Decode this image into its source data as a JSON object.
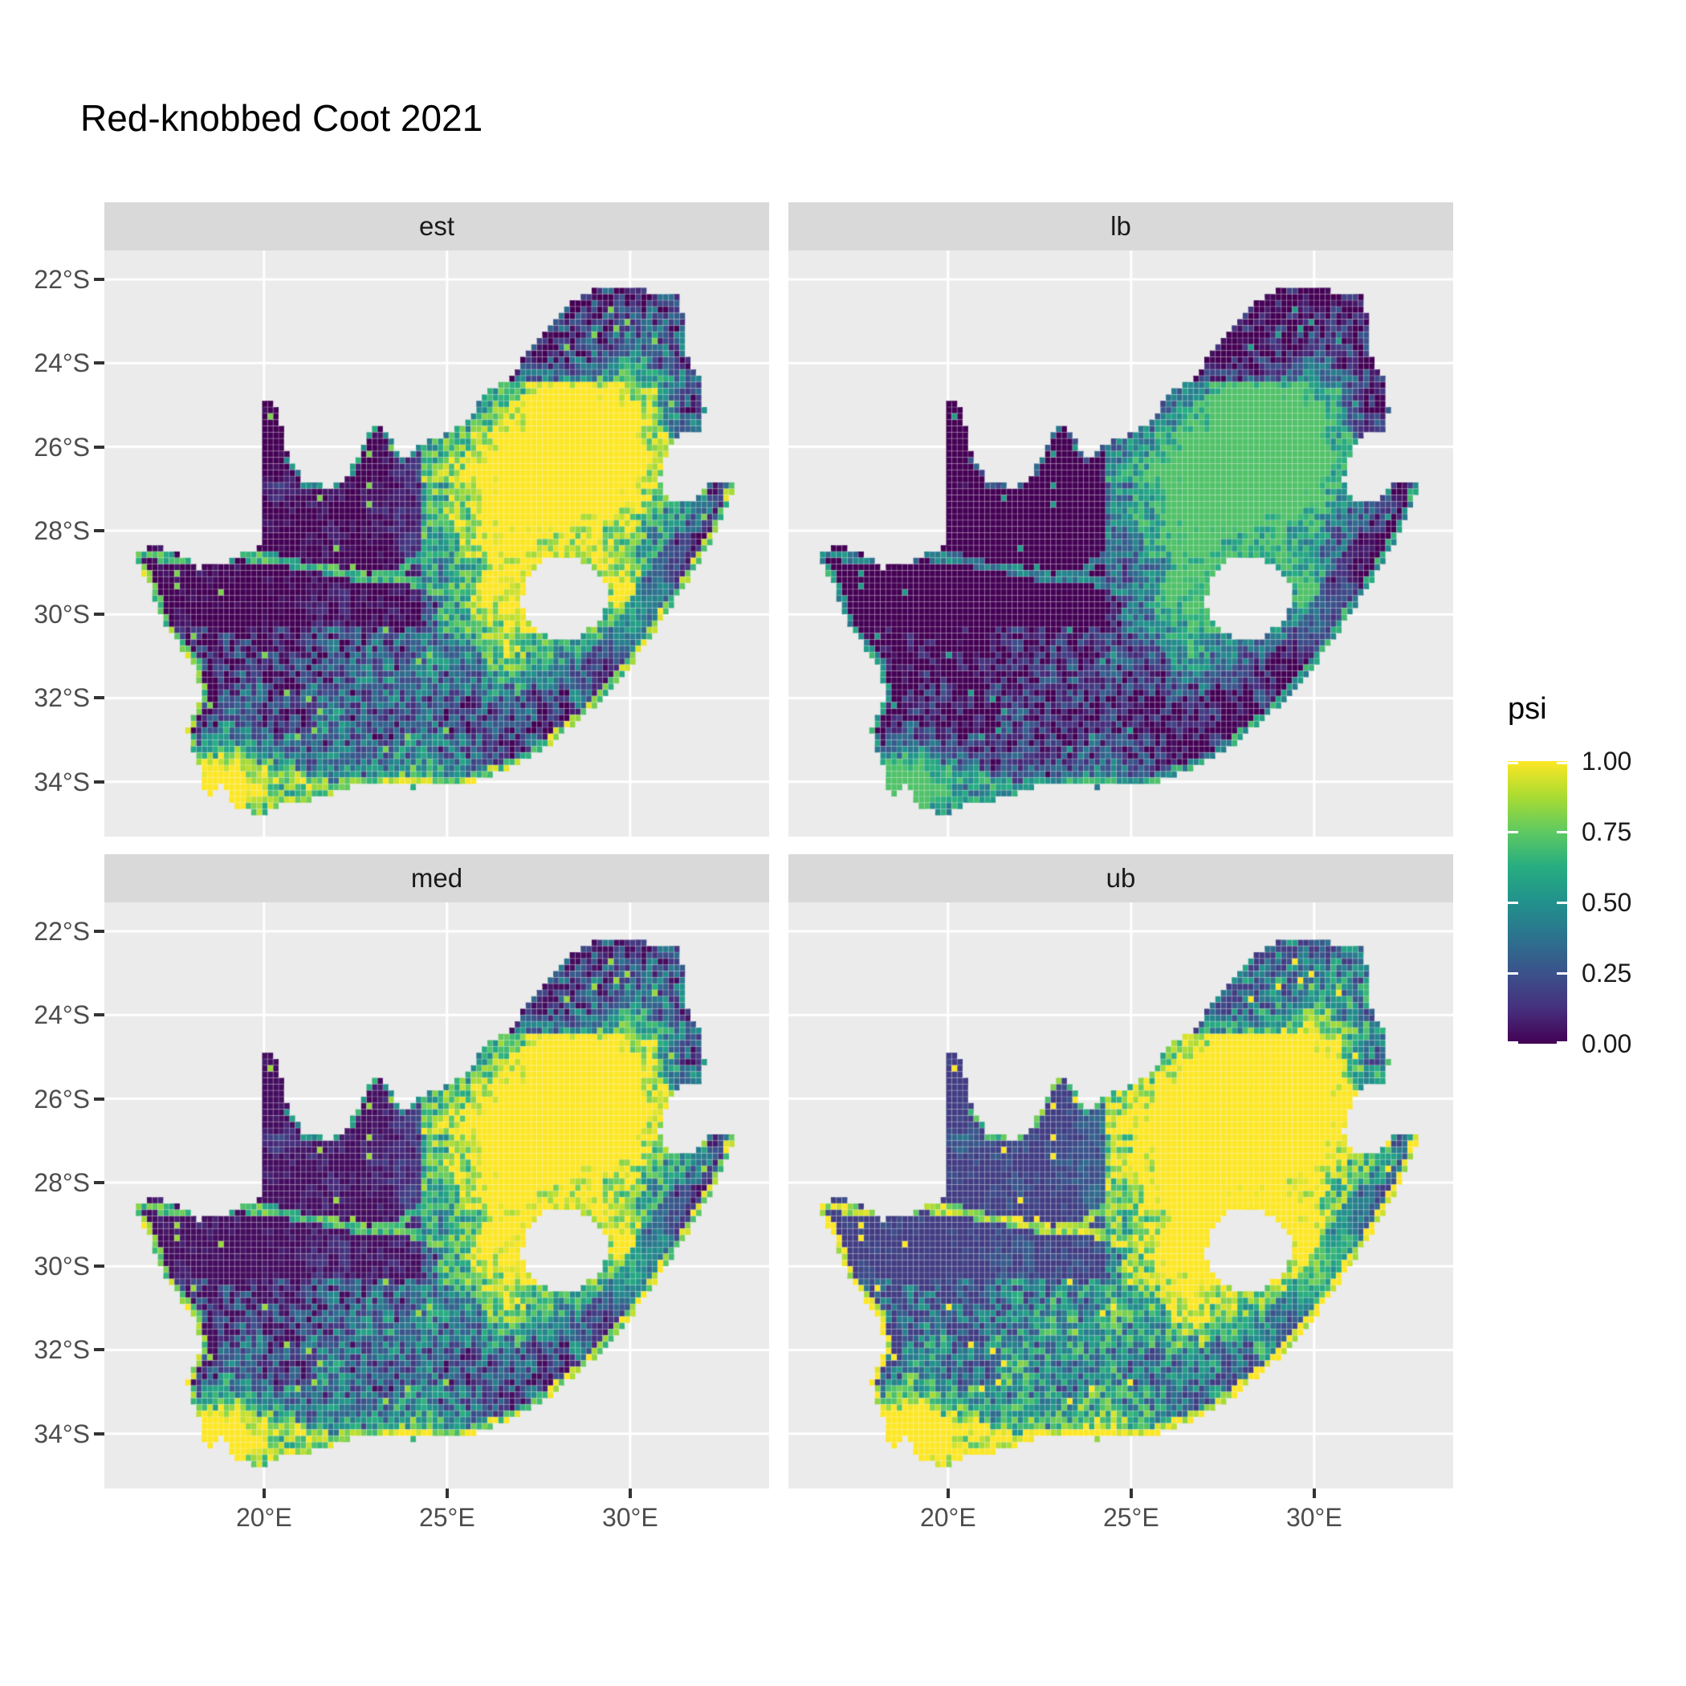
{
  "title": "Red-knobbed Coot 2021",
  "legend": {
    "title": "psi",
    "entries": [
      {
        "label": "1.00",
        "value": 1.0
      },
      {
        "label": "0.75",
        "value": 0.75
      },
      {
        "label": "0.50",
        "value": 0.5
      },
      {
        "label": "0.25",
        "value": 0.25
      },
      {
        "label": "0.00",
        "value": 0.0
      }
    ]
  },
  "axes": {
    "x": {
      "ticks": [
        {
          "label": "20°E",
          "value": 20
        },
        {
          "label": "25°E",
          "value": 25
        },
        {
          "label": "30°E",
          "value": 30
        }
      ]
    },
    "y": {
      "ticks": [
        {
          "label": "22°S",
          "value": 22
        },
        {
          "label": "24°S",
          "value": 24
        },
        {
          "label": "26°S",
          "value": 26
        },
        {
          "label": "28°S",
          "value": 28
        },
        {
          "label": "30°S",
          "value": 30
        },
        {
          "label": "32°S",
          "value": 32
        },
        {
          "label": "34°S",
          "value": 34
        }
      ]
    }
  },
  "colors": {
    "figure_bg": "#FFFFFF",
    "panel_bg": "#EBEBEB",
    "strip_bg": "#D9D9D9",
    "grid_major": "#FFFFFF",
    "axis_text": "#4D4D4D",
    "strip_text": "#1A1A1A",
    "title_text": "#000000",
    "tick_mark": "#333333",
    "cell_grid": "rgba(255,255,255,0.27)"
  },
  "chart_data": {
    "type": "heatmap",
    "subtype": "faceted_raster_occupancy_map",
    "title": "Red-knobbed Coot 2021",
    "region": "South Africa",
    "value_name": "psi",
    "value_range": [
      0,
      1
    ],
    "facets": [
      {
        "label": "est",
        "mul": 1.0,
        "add": 0.0
      },
      {
        "label": "lb",
        "mul": 0.85,
        "add": -0.13
      },
      {
        "label": "med",
        "mul": 1.02,
        "add": 0.03
      },
      {
        "label": "ub",
        "mul": 1.08,
        "add": 0.17
      }
    ],
    "lon_range": [
      15.64,
      33.8
    ],
    "lat_range": [
      -35.31,
      -21.31
    ],
    "cell_size_deg": 0.15,
    "grid_origin": [
      16.35,
      -22.05
    ],
    "grid_cols": 111,
    "grid_rows": 86,
    "noise_seed": 11,
    "viridis_stops": [
      {
        "t": 0.0,
        "c": "#440154"
      },
      {
        "t": 0.125,
        "c": "#46307e"
      },
      {
        "t": 0.25,
        "c": "#3b528b"
      },
      {
        "t": 0.375,
        "c": "#2c728e"
      },
      {
        "t": 0.5,
        "c": "#21918c"
      },
      {
        "t": 0.625,
        "c": "#27ad81"
      },
      {
        "t": 0.75,
        "c": "#5ec962"
      },
      {
        "t": 0.875,
        "c": "#aadc32"
      },
      {
        "t": 1.0,
        "c": "#fde725"
      }
    ],
    "outline": [
      [
        16.45,
        -28.58
      ],
      [
        17.0,
        -28.32
      ],
      [
        17.6,
        -28.55
      ],
      [
        18.25,
        -28.9
      ],
      [
        19.0,
        -28.75
      ],
      [
        19.6,
        -28.45
      ],
      [
        19.99,
        -28.4
      ],
      [
        19.99,
        -26.5
      ],
      [
        19.99,
        -24.88
      ],
      [
        20.35,
        -25.05
      ],
      [
        20.55,
        -25.7
      ],
      [
        20.7,
        -26.35
      ],
      [
        21.15,
        -26.88
      ],
      [
        21.9,
        -26.95
      ],
      [
        22.35,
        -26.6
      ],
      [
        22.9,
        -25.65
      ],
      [
        23.2,
        -25.42
      ],
      [
        23.5,
        -25.82
      ],
      [
        23.78,
        -26.28
      ],
      [
        24.25,
        -25.95
      ],
      [
        24.85,
        -25.75
      ],
      [
        25.45,
        -25.5
      ],
      [
        25.8,
        -25.05
      ],
      [
        26.1,
        -24.68
      ],
      [
        26.55,
        -24.48
      ],
      [
        26.95,
        -24.1
      ],
      [
        27.3,
        -23.55
      ],
      [
        28.0,
        -23.0
      ],
      [
        28.4,
        -22.58
      ],
      [
        29.15,
        -22.18
      ],
      [
        29.75,
        -22.12
      ],
      [
        30.45,
        -22.28
      ],
      [
        31.3,
        -22.38
      ],
      [
        31.55,
        -23.2
      ],
      [
        31.58,
        -23.98
      ],
      [
        31.98,
        -24.4
      ],
      [
        32.03,
        -25.12
      ],
      [
        31.95,
        -25.58
      ],
      [
        31.3,
        -25.74
      ],
      [
        30.9,
        -26.32
      ],
      [
        30.8,
        -26.88
      ],
      [
        31.08,
        -27.28
      ],
      [
        31.62,
        -27.33
      ],
      [
        31.98,
        -27.06
      ],
      [
        32.15,
        -26.88
      ],
      [
        32.89,
        -26.88
      ],
      [
        32.55,
        -27.62
      ],
      [
        32.18,
        -28.32
      ],
      [
        31.68,
        -29.08
      ],
      [
        31.02,
        -29.92
      ],
      [
        30.52,
        -30.62
      ],
      [
        29.92,
        -31.32
      ],
      [
        29.28,
        -31.98
      ],
      [
        28.52,
        -32.58
      ],
      [
        27.82,
        -33.08
      ],
      [
        27.0,
        -33.56
      ],
      [
        26.3,
        -33.78
      ],
      [
        25.62,
        -34.03
      ],
      [
        24.95,
        -33.99
      ],
      [
        24.1,
        -34.13
      ],
      [
        23.25,
        -34.1
      ],
      [
        22.45,
        -34.06
      ],
      [
        21.65,
        -34.4
      ],
      [
        20.5,
        -34.47
      ],
      [
        20.0,
        -34.83
      ],
      [
        19.3,
        -34.62
      ],
      [
        18.78,
        -34.06
      ],
      [
        18.44,
        -34.36
      ],
      [
        18.3,
        -33.86
      ],
      [
        17.86,
        -32.76
      ],
      [
        18.28,
        -31.92
      ],
      [
        18.08,
        -31.15
      ],
      [
        17.28,
        -30.3
      ],
      [
        16.88,
        -29.3
      ],
      [
        16.45,
        -28.58
      ]
    ],
    "lesotho_hole": [
      [
        27.05,
        -29.6
      ],
      [
        27.3,
        -28.95
      ],
      [
        27.75,
        -28.68
      ],
      [
        28.4,
        -28.6
      ],
      [
        29.0,
        -28.9
      ],
      [
        29.35,
        -29.25
      ],
      [
        29.45,
        -29.7
      ],
      [
        29.1,
        -30.2
      ],
      [
        28.55,
        -30.55
      ],
      [
        28.0,
        -30.67
      ],
      [
        27.5,
        -30.42
      ],
      [
        27.1,
        -30.1
      ]
    ],
    "coastline": [
      [
        32.89,
        -26.88
      ],
      [
        32.55,
        -27.62
      ],
      [
        32.18,
        -28.32
      ],
      [
        31.68,
        -29.08
      ],
      [
        31.02,
        -29.92
      ],
      [
        30.52,
        -30.62
      ],
      [
        29.92,
        -31.32
      ],
      [
        29.28,
        -31.98
      ],
      [
        28.52,
        -32.58
      ],
      [
        27.82,
        -33.08
      ],
      [
        27.0,
        -33.56
      ],
      [
        26.3,
        -33.78
      ],
      [
        25.62,
        -34.03
      ],
      [
        24.95,
        -33.99
      ],
      [
        24.1,
        -34.13
      ],
      [
        23.25,
        -34.1
      ],
      [
        22.45,
        -34.06
      ],
      [
        21.65,
        -34.4
      ],
      [
        20.5,
        -34.47
      ],
      [
        20.0,
        -34.83
      ],
      [
        19.3,
        -34.62
      ],
      [
        18.78,
        -34.06
      ],
      [
        18.44,
        -34.36
      ],
      [
        18.3,
        -33.86
      ],
      [
        17.86,
        -32.76
      ],
      [
        18.28,
        -31.92
      ],
      [
        18.08,
        -31.15
      ],
      [
        17.28,
        -30.3
      ],
      [
        16.88,
        -29.3
      ],
      [
        16.45,
        -28.58
      ]
    ],
    "rivers": {
      "orange": [
        [
          16.6,
          -28.55
        ],
        [
          18.0,
          -28.75
        ],
        [
          19.3,
          -28.6
        ],
        [
          20.2,
          -28.65
        ],
        [
          21.0,
          -28.85
        ],
        [
          21.9,
          -28.95
        ],
        [
          22.8,
          -29.15
        ],
        [
          23.6,
          -29.05
        ],
        [
          24.4,
          -29.35
        ],
        [
          25.2,
          -29.55
        ],
        [
          25.9,
          -29.85
        ],
        [
          26.6,
          -30.1
        ],
        [
          27.2,
          -30.35
        ]
      ],
      "vaal": [
        [
          27.7,
          -26.75
        ],
        [
          26.9,
          -27.2
        ],
        [
          26.2,
          -27.6
        ],
        [
          25.5,
          -28.0
        ],
        [
          24.8,
          -28.4
        ],
        [
          24.1,
          -28.7
        ],
        [
          23.65,
          -29.0
        ]
      ],
      "molopo": [
        [
          20.7,
          -26.35
        ],
        [
          21.15,
          -26.88
        ],
        [
          21.9,
          -26.95
        ],
        [
          22.35,
          -26.6
        ],
        [
          22.9,
          -25.65
        ],
        [
          23.2,
          -25.45
        ],
        [
          23.5,
          -25.82
        ],
        [
          23.78,
          -26.28
        ],
        [
          24.25,
          -25.95
        ],
        [
          24.85,
          -25.78
        ]
      ]
    },
    "hotspots": [
      [
        27.9,
        -26.25,
        2.4,
        1.35,
        1.0
      ],
      [
        26.1,
        -27.9,
        1.7,
        1.15,
        0.6
      ],
      [
        28.9,
        -25.7,
        1.0,
        0.8,
        0.5
      ],
      [
        29.6,
        -26.9,
        1.3,
        1.0,
        0.55
      ],
      [
        29.85,
        -29.35,
        1.15,
        0.9,
        0.8
      ],
      [
        27.4,
        -30.6,
        1.35,
        0.8,
        0.55
      ],
      [
        26.7,
        -29.2,
        0.95,
        0.75,
        0.5
      ],
      [
        18.75,
        -33.85,
        0.85,
        0.7,
        0.95
      ],
      [
        19.9,
        -34.35,
        1.7,
        0.5,
        0.5
      ],
      [
        24.3,
        -34.05,
        2.4,
        0.5,
        0.45
      ],
      [
        28.2,
        -24.75,
        1.7,
        0.8,
        0.3
      ],
      [
        30.3,
        -23.9,
        1.1,
        0.9,
        0.35
      ],
      [
        25.6,
        -31.4,
        2.0,
        1.3,
        0.28
      ],
      [
        22.3,
        -32.6,
        2.3,
        1.3,
        0.22
      ],
      [
        30.35,
        -30.9,
        0.75,
        0.6,
        0.5
      ],
      [
        20.45,
        -26.95,
        0.4,
        0.35,
        0.5
      ]
    ],
    "dark_zone": {
      "lon_max": 24.3,
      "lat_min": -30.3,
      "lat_max": -24.6
    },
    "north_dim": {
      "lat_min": -24.4,
      "lon_min": 24.3
    },
    "east_coast_belt": {
      "lon_min": 28.8,
      "lat_max": -28.2,
      "lat_min": -32.5
    }
  }
}
